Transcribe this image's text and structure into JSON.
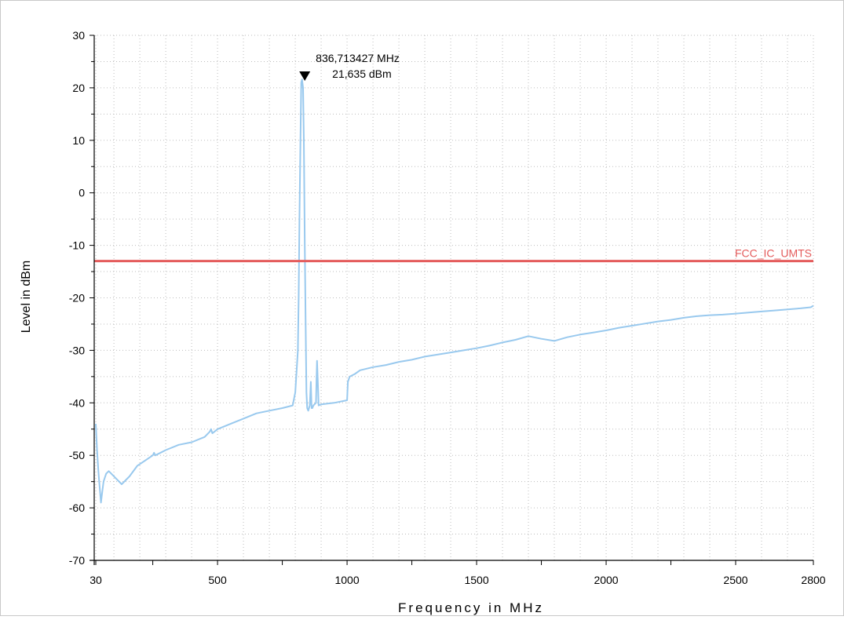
{
  "chart_data": {
    "type": "line",
    "title": "",
    "xlabel": "Frequency in MHz",
    "ylabel": "Level in dBm",
    "xlim": [
      30,
      2800
    ],
    "ylim": [
      -70,
      30
    ],
    "x_ticks": [
      {
        "value": 30,
        "label": "30"
      },
      {
        "value": 500,
        "label": "500"
      },
      {
        "value": 1000,
        "label": "1000"
      },
      {
        "value": 1500,
        "label": "1500"
      },
      {
        "value": 2000,
        "label": "2000"
      },
      {
        "value": 2500,
        "label": "2500"
      },
      {
        "value": 2800,
        "label": "2800"
      }
    ],
    "x_minor_ticks": [
      250,
      750,
      1250,
      1750,
      2250
    ],
    "y_ticks": [
      {
        "value": 30,
        "label": "30"
      },
      {
        "value": 20,
        "label": "20"
      },
      {
        "value": 10,
        "label": "10"
      },
      {
        "value": 0,
        "label": "0"
      },
      {
        "value": -10,
        "label": "-10"
      },
      {
        "value": -20,
        "label": "-20"
      },
      {
        "value": -30,
        "label": "-30"
      },
      {
        "value": -40,
        "label": "-40"
      },
      {
        "value": -50,
        "label": "-50"
      },
      {
        "value": -60,
        "label": "-60"
      },
      {
        "value": -70,
        "label": "-70"
      }
    ],
    "grid": true,
    "series": [
      {
        "color": "#99c9ee",
        "x": [
          30,
          35,
          40,
          45,
          50,
          55,
          60,
          70,
          80,
          90,
          110,
          130,
          160,
          190,
          220,
          250,
          255,
          260,
          300,
          350,
          400,
          450,
          470,
          475,
          480,
          500,
          550,
          600,
          650,
          700,
          750,
          790,
          800,
          810,
          813,
          816,
          820,
          823,
          826,
          830,
          833,
          836.7,
          840,
          843,
          846,
          850,
          856,
          860,
          863,
          866,
          870,
          880,
          882,
          884,
          887,
          890,
          900,
          950,
          1000,
          1003,
          1010,
          1030,
          1050,
          1100,
          1150,
          1200,
          1250,
          1300,
          1350,
          1400,
          1450,
          1500,
          1550,
          1600,
          1650,
          1700,
          1750,
          1800,
          1850,
          1900,
          1950,
          2000,
          2050,
          2100,
          2150,
          2200,
          2250,
          2300,
          2350,
          2400,
          2450,
          2500,
          2550,
          2600,
          2650,
          2700,
          2750,
          2790,
          2800
        ],
        "y": [
          -44,
          -49,
          -53,
          -56,
          -59,
          -57,
          -55,
          -53.5,
          -53,
          -53.5,
          -54.5,
          -55.5,
          -54,
          -52,
          -51,
          -50,
          -49.5,
          -50,
          -49,
          -48,
          -47.5,
          -46.5,
          -45.5,
          -45,
          -45.8,
          -45,
          -44,
          -43,
          -42,
          -41.5,
          -41,
          -40.5,
          -38,
          -30,
          -20,
          -5,
          10,
          21,
          21.6,
          20,
          10,
          -10,
          -25,
          -38,
          -41,
          -41.5,
          -40.5,
          -36,
          -41,
          -41,
          -40.5,
          -40,
          -36,
          -32,
          -36,
          -40.5,
          -40.3,
          -40,
          -39.5,
          -36,
          -35,
          -34.5,
          -33.8,
          -33.2,
          -32.8,
          -32.2,
          -31.8,
          -31.2,
          -30.8,
          -30.4,
          -30.0,
          -29.6,
          -29.1,
          -28.5,
          -28.0,
          -27.3,
          -27.8,
          -28.2,
          -27.5,
          -27.0,
          -26.6,
          -26.2,
          -25.7,
          -25.3,
          -24.9,
          -24.5,
          -24.2,
          -23.8,
          -23.5,
          -23.3,
          -23.2,
          -23.0,
          -22.8,
          -22.6,
          -22.4,
          -22.2,
          -22.0,
          -21.8,
          -21.5
        ]
      }
    ],
    "limit_lines": [
      {
        "name": "FCC_IC_UMTS",
        "y": -13,
        "color": "#e45c5c"
      }
    ],
    "marker": {
      "x": 836.7,
      "y": 21.635,
      "freq_label": "836,713427 MHz",
      "level_label": "21,635 dBm"
    }
  }
}
